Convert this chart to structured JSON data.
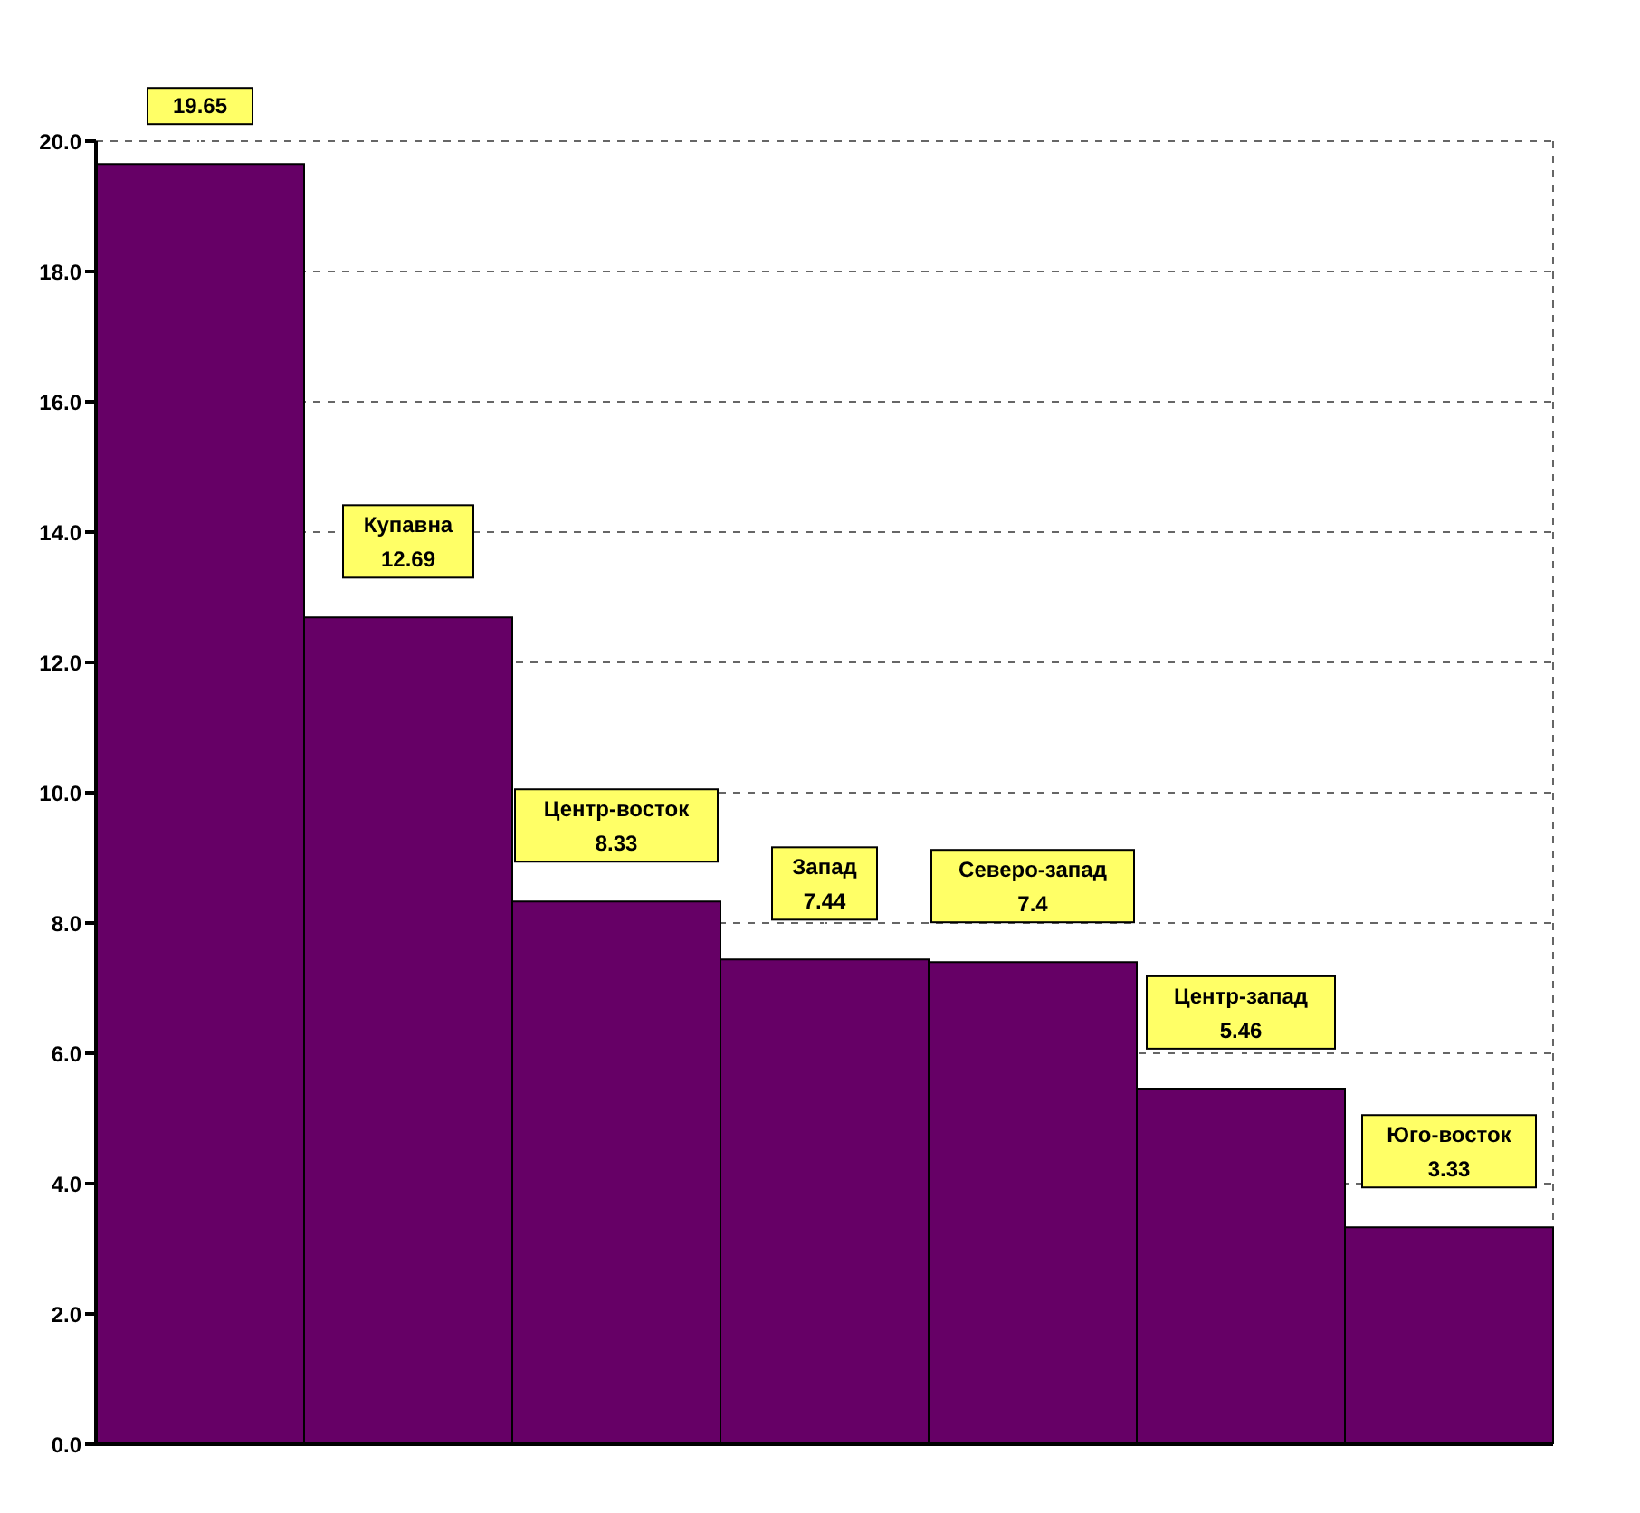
{
  "chart_data": {
    "type": "bar",
    "categories": [
      null,
      "Купавна",
      "Центр-восток",
      "Запад",
      "Северо-запад",
      "Центр-запад",
      "Юго-восток"
    ],
    "values": [
      19.65,
      12.69,
      8.33,
      7.44,
      7.4,
      5.46,
      3.33
    ],
    "color": "#660066",
    "ylim": [
      0,
      20
    ],
    "yticks": [
      {
        "value": 0,
        "label": "0.0"
      },
      {
        "value": 2,
        "label": "2.0"
      },
      {
        "value": 4,
        "label": "4.0"
      },
      {
        "value": 6,
        "label": "6.0"
      },
      {
        "value": 8,
        "label": "8.0"
      },
      {
        "value": 10,
        "label": "10.0"
      },
      {
        "value": 12,
        "label": "12.0"
      },
      {
        "value": 14,
        "label": "14.0"
      },
      {
        "value": 16,
        "label": "16.0"
      },
      {
        "value": 18,
        "label": "18.0"
      },
      {
        "value": 20,
        "label": "20.0"
      }
    ],
    "grid": true,
    "data_labels": true,
    "tick_labels": "y"
  }
}
